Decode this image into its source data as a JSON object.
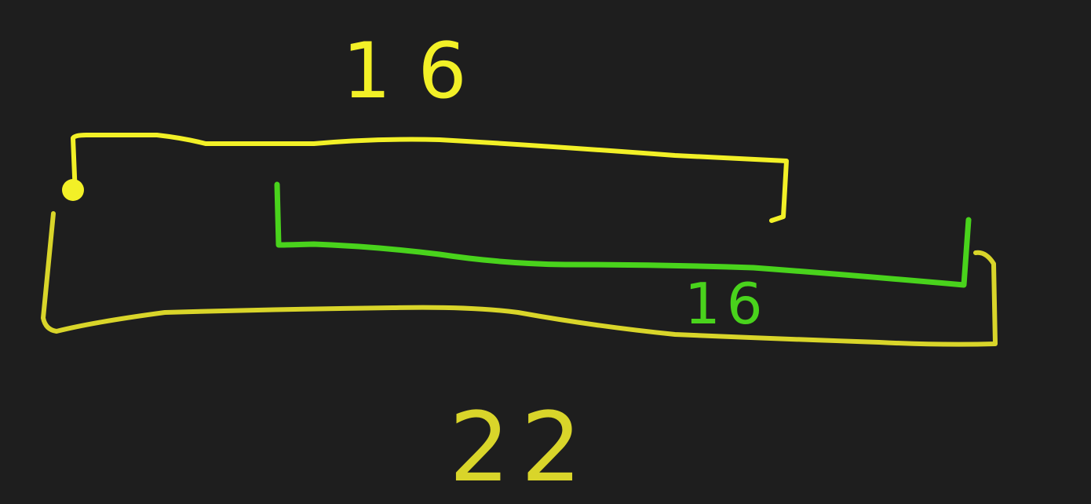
{
  "colors": {
    "background": "#1e1e1e",
    "yellow_ink": "#f2f027",
    "yellow_ink_dim": "#d9d52a",
    "green_ink": "#49d31c"
  },
  "labels": {
    "top_bracket_length": "16",
    "green_bracket_length": "16",
    "outer_bracket_length": "22"
  }
}
